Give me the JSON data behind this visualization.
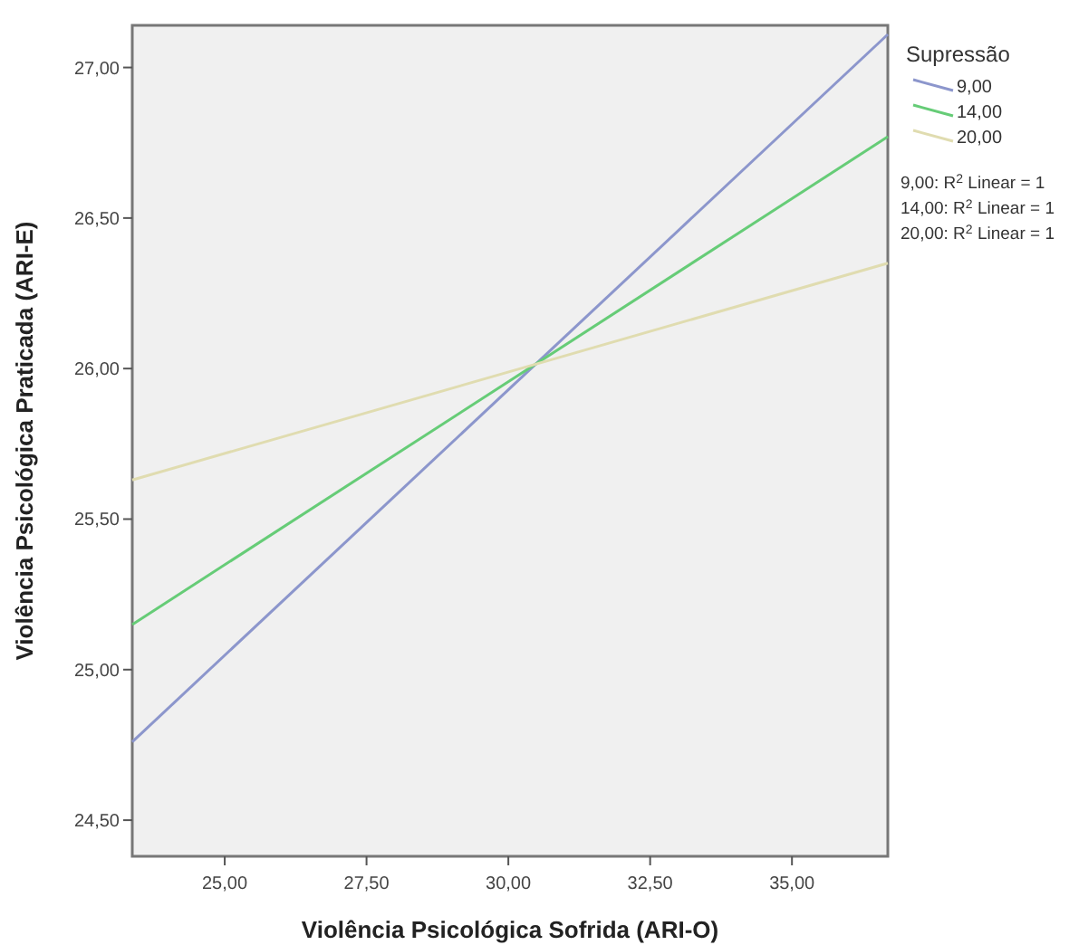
{
  "chart_data": {
    "type": "line",
    "xlabel": "Violência Psicológica Sofrida (ARI-O)",
    "ylabel": "Violência Psicológica Praticada (ARI-E)",
    "legend_title": "Supressão",
    "x": [
      23.37,
      36.69
    ],
    "series": [
      {
        "name": "9,00",
        "color": "#8c96cc",
        "values": [
          24.76,
          27.11
        ]
      },
      {
        "name": "14,00",
        "color": "#66cc77",
        "values": [
          25.15,
          26.77
        ]
      },
      {
        "name": "20,00",
        "color": "#e0dcb0",
        "values": [
          25.63,
          26.35
        ]
      }
    ],
    "xlim": [
      23.37,
      36.69
    ],
    "xticks": [
      {
        "value": 25,
        "label": "25,00"
      },
      {
        "value": 27.5,
        "label": "27,50"
      },
      {
        "value": 30,
        "label": "30,00"
      },
      {
        "value": 32.5,
        "label": "32,50"
      },
      {
        "value": 35,
        "label": "35,00"
      }
    ],
    "ylim": [
      24.38,
      27.14
    ],
    "yticks": [
      {
        "value": 24.5,
        "label": "24,50"
      },
      {
        "value": 25,
        "label": "25,00"
      },
      {
        "value": 25.5,
        "label": "25,50"
      },
      {
        "value": 26,
        "label": "26,00"
      },
      {
        "value": 26.5,
        "label": "26,50"
      },
      {
        "value": 27,
        "label": "27,00"
      }
    ],
    "annotations": [
      "9,00: R$^{2}$ Linear = 1",
      "14,00: R$^{2}$ Linear = 1",
      "20,00: R$^{2}$ Linear = 1"
    ],
    "legend": "right",
    "grid": false,
    "line_style": "solid"
  }
}
